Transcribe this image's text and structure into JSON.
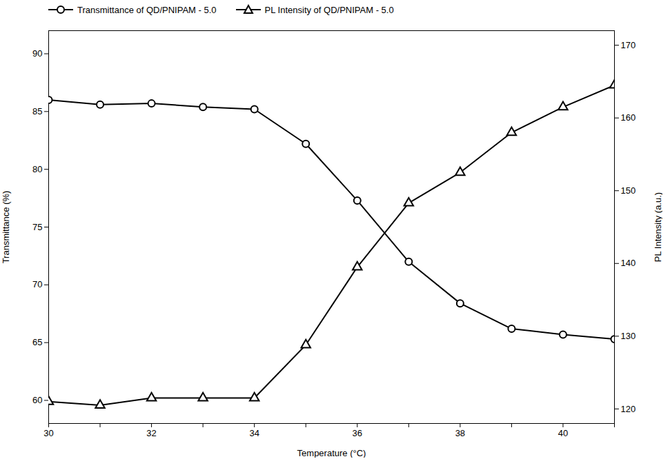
{
  "chart_data": {
    "type": "line",
    "xlabel": "Temperature (°C)",
    "ylabel": "Transmittance (%)",
    "y2label": "PL Intensity (a.u.)",
    "x": [
      30,
      31,
      32,
      33,
      34,
      35,
      36,
      37,
      38,
      39,
      40,
      41
    ],
    "series": [
      {
        "name": "Transmittance of QD/PNIPAM - 5.0",
        "color": "#000000",
        "marker": "circle",
        "values": [
          86.0,
          85.6,
          85.7,
          85.4,
          85.2,
          82.2,
          77.3,
          72.0,
          68.4,
          66.2,
          65.7,
          65.3
        ]
      },
      {
        "name": "PL Intensity of QD/PNIPAM - 5.0",
        "color": "#000000",
        "marker": "triangle",
        "axis": "y2",
        "values": [
          121.0,
          120.5,
          121.5,
          121.5,
          121.5,
          128.8,
          139.5,
          148.3,
          152.5,
          158.0,
          161.5,
          164.5
        ]
      }
    ],
    "xlim": [
      30,
      41
    ],
    "xticks": [
      30,
      {
        "value": 31,
        "label": null
      },
      32,
      {
        "value": 33,
        "label": null
      },
      34,
      {
        "value": 35,
        "label": null
      },
      36,
      {
        "value": 37,
        "label": null
      },
      38,
      {
        "value": 39,
        "label": null
      },
      40,
      {
        "value": 41,
        "label": null
      }
    ],
    "ylim": [
      58,
      92
    ],
    "yticks": [
      60,
      65,
      70,
      75,
      80,
      85,
      90
    ],
    "y2lim": [
      118,
      172
    ],
    "y2ticks": [
      120,
      130,
      140,
      150,
      160,
      170
    ],
    "legend": "upper left",
    "grid": false
  }
}
